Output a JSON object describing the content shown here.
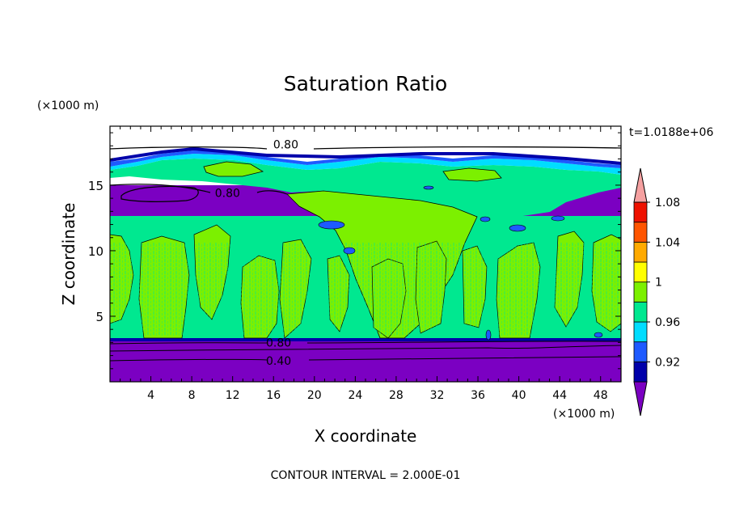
{
  "chart_data": {
    "type": "heatmap",
    "title": "Saturation Ratio",
    "xlabel": "X coordinate",
    "ylabel": "Z coordinate",
    "x_unit": "(×1000 m)",
    "y_unit": "(×1000 m)",
    "xlim": [
      0,
      50
    ],
    "ylim": [
      0,
      19.5
    ],
    "x_ticks": [
      4,
      8,
      12,
      16,
      20,
      24,
      28,
      32,
      36,
      40,
      44,
      48
    ],
    "y_ticks": [
      5,
      10,
      15
    ],
    "time_label": "t=1.0188e+06",
    "footer": "CONTOUR INTERVAL = 2.000E-01",
    "contour_labels": [
      {
        "text": "0.80",
        "x": 17.2,
        "z": 18.1
      },
      {
        "text": "0.80",
        "x": 11.5,
        "z": 14.4
      },
      {
        "text": "0.80",
        "x": 16.5,
        "z": 3.0
      },
      {
        "text": "0.40",
        "x": 16.5,
        "z": 1.6
      }
    ],
    "colorbar": {
      "levels": [
        0.92,
        0.96,
        1,
        1.04,
        1.08
      ],
      "labels": [
        "0.92",
        "0.96",
        "1",
        "1.04",
        "1.08"
      ],
      "colors": [
        "#7B00C2",
        "#0000AA",
        "#1E5AFF",
        "#00DDFF",
        "#00E890",
        "#7CF000",
        "#FFFF00",
        "#FFAA00",
        "#FF5500",
        "#EE1100",
        "#F5A0A0"
      ]
    },
    "bands": [
      {
        "z": [
          0.0,
          3.2
        ],
        "value": "< 0.92"
      },
      {
        "z": [
          3.2,
          3.5
        ],
        "value": "0.92-1.00"
      },
      {
        "z": [
          3.5,
          13.3
        ],
        "value": "0.96-1.04 (mixed 1.00-1.04 columns)"
      },
      {
        "z": [
          13.3,
          17.5
        ],
        "value": "0.80-1.00 (mixed)"
      },
      {
        "z": [
          17.5,
          19.5
        ],
        "value": "< 0.92"
      }
    ]
  }
}
